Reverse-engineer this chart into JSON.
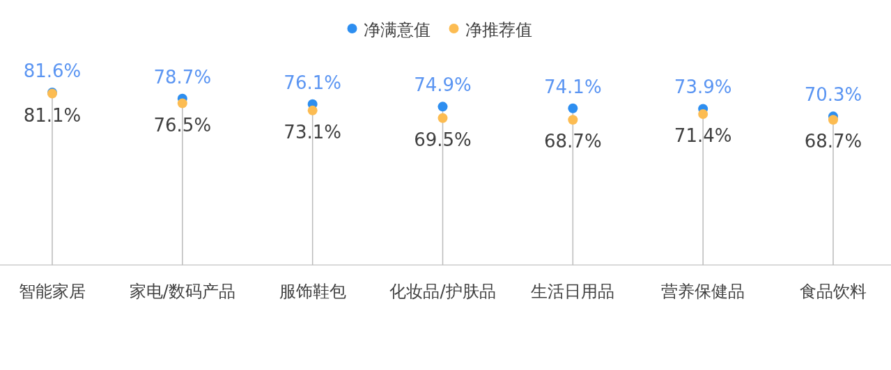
{
  "chart_data": {
    "type": "lollipop",
    "categories": [
      "智能家居",
      "家电/数码产品",
      "服饰鞋包",
      "化妆品/护肤品",
      "生活日用品",
      "营养保健品",
      "食品饮料"
    ],
    "series": [
      {
        "name": "净满意值",
        "color": "#2d8ef0",
        "values": [
          81.6,
          78.7,
          76.1,
          74.9,
          74.1,
          73.9,
          70.3
        ],
        "value_labels": [
          "81.6%",
          "78.7%",
          "76.1%",
          "74.9%",
          "74.1%",
          "73.9%",
          "70.3%"
        ]
      },
      {
        "name": "净推荐值",
        "color": "#fcbc52",
        "values": [
          81.1,
          76.5,
          73.1,
          69.5,
          68.7,
          71.4,
          68.7
        ],
        "value_labels": [
          "81.1%",
          "76.5%",
          "73.1%",
          "69.5%",
          "68.7%",
          "71.4%",
          "68.7%"
        ]
      }
    ],
    "legend": "top",
    "marker": "circle"
  }
}
